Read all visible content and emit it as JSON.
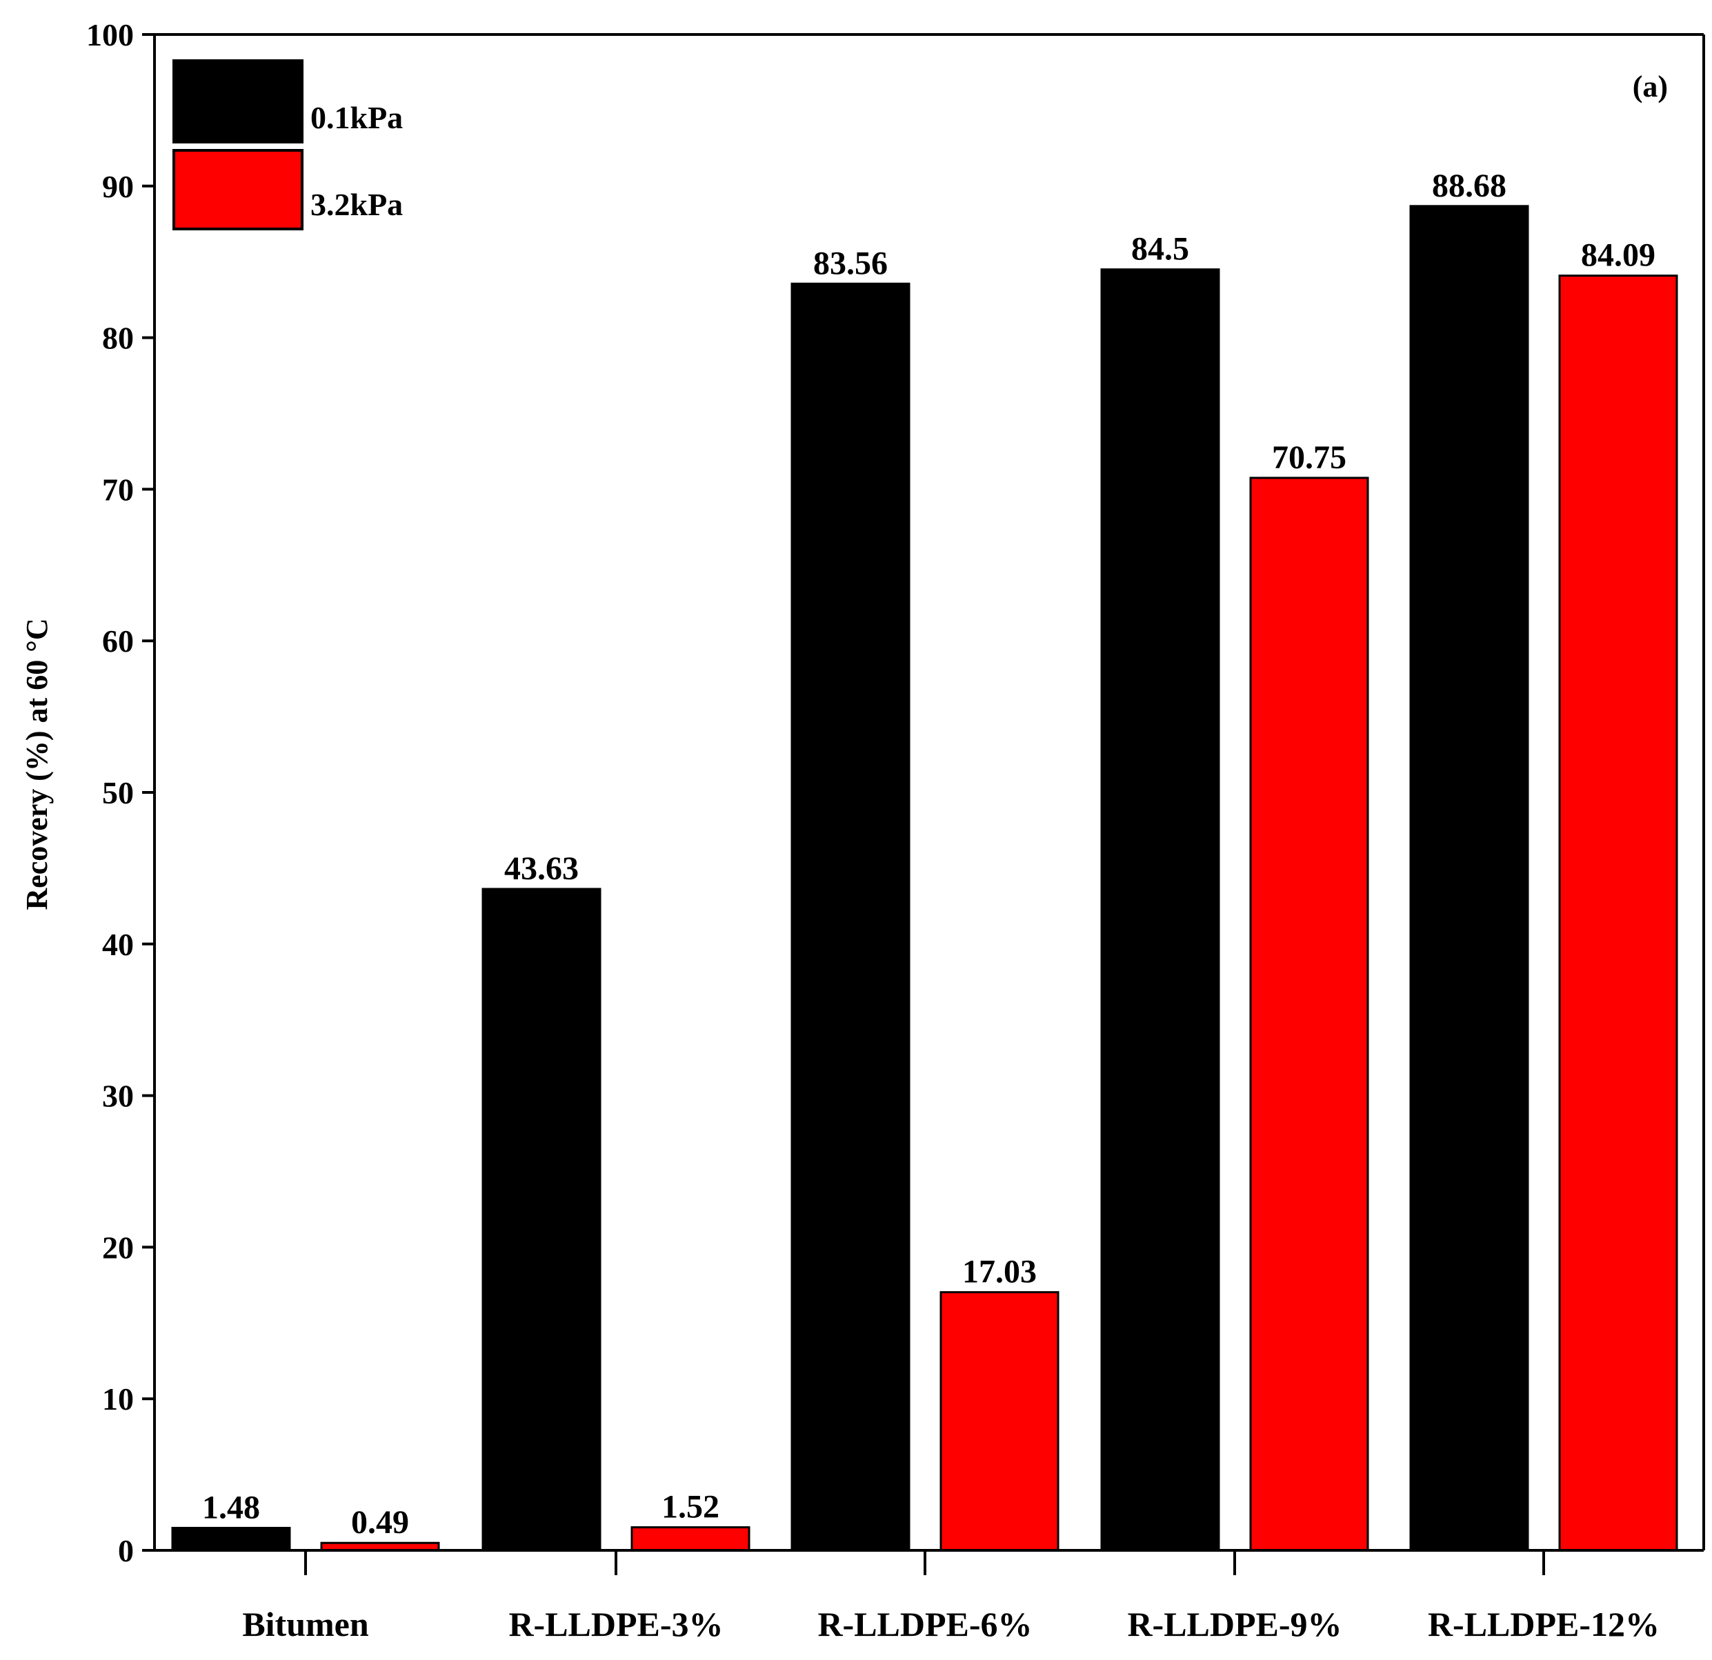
{
  "chart_data": {
    "type": "bar",
    "categories": [
      "Bitumen",
      "R-LLDPE-3%",
      "R-LLDPE-6%",
      "R-LLDPE-9%",
      "R-LLDPE-12%"
    ],
    "series": [
      {
        "name": "0.1kPa",
        "color": "#000000",
        "values": [
          1.48,
          43.63,
          83.56,
          84.5,
          88.68
        ],
        "labels": [
          "1.48",
          "43.63",
          "83.56",
          "84.5",
          "88.68"
        ]
      },
      {
        "name": "3.2kPa",
        "color": "#ff0000",
        "values": [
          0.49,
          1.52,
          17.03,
          70.75,
          84.09
        ],
        "labels": [
          "0.49",
          "1.52",
          "17.03",
          "70.75",
          "84.09"
        ]
      }
    ],
    "ylabel": "Recovery (%) at 60 °C",
    "ylim": [
      0,
      100
    ],
    "yticks": [
      0,
      10,
      20,
      30,
      40,
      50,
      60,
      70,
      80,
      90,
      100
    ],
    "grid": false,
    "legend_position": "top-left",
    "panel_label": "(a)"
  }
}
